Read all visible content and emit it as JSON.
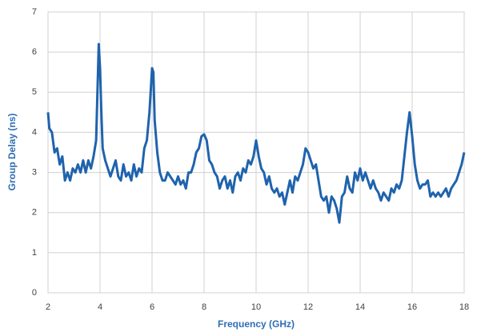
{
  "chart_data": {
    "type": "line",
    "x_label": "Frequency (GHz)",
    "y_label": "Group Delay (ns)",
    "xlim": [
      2,
      18
    ],
    "xticks": [
      2,
      4,
      6,
      8,
      10,
      12,
      14,
      16,
      18
    ],
    "ylim": [
      0,
      7
    ],
    "yticks": [
      0,
      1,
      2,
      3,
      4,
      5,
      6,
      7
    ],
    "grid": true,
    "series": [
      {
        "color": "#1f63ad",
        "x": [
          2.0,
          2.05,
          2.15,
          2.25,
          2.35,
          2.45,
          2.55,
          2.65,
          2.75,
          2.85,
          2.95,
          3.05,
          3.15,
          3.25,
          3.35,
          3.45,
          3.55,
          3.65,
          3.75,
          3.85,
          3.9,
          3.95,
          4.0,
          4.05,
          4.1,
          4.2,
          4.3,
          4.4,
          4.5,
          4.6,
          4.7,
          4.8,
          4.9,
          5.0,
          5.1,
          5.2,
          5.3,
          5.4,
          5.5,
          5.6,
          5.7,
          5.8,
          5.9,
          6.0,
          6.05,
          6.1,
          6.2,
          6.3,
          6.4,
          6.5,
          6.6,
          6.7,
          6.8,
          6.9,
          7.0,
          7.1,
          7.2,
          7.3,
          7.4,
          7.5,
          7.6,
          7.7,
          7.8,
          7.9,
          8.0,
          8.1,
          8.2,
          8.3,
          8.4,
          8.5,
          8.6,
          8.7,
          8.8,
          8.9,
          9.0,
          9.1,
          9.2,
          9.3,
          9.4,
          9.5,
          9.6,
          9.7,
          9.8,
          9.9,
          10.0,
          10.1,
          10.2,
          10.3,
          10.4,
          10.5,
          10.6,
          10.7,
          10.8,
          10.9,
          11.0,
          11.1,
          11.2,
          11.3,
          11.4,
          11.5,
          11.6,
          11.7,
          11.8,
          11.9,
          12.0,
          12.1,
          12.2,
          12.3,
          12.4,
          12.5,
          12.6,
          12.7,
          12.8,
          12.9,
          13.0,
          13.1,
          13.2,
          13.3,
          13.4,
          13.5,
          13.6,
          13.7,
          13.8,
          13.9,
          14.0,
          14.1,
          14.2,
          14.3,
          14.4,
          14.5,
          14.6,
          14.7,
          14.8,
          14.9,
          15.0,
          15.1,
          15.2,
          15.3,
          15.4,
          15.5,
          15.6,
          15.7,
          15.8,
          15.9,
          16.0,
          16.1,
          16.2,
          16.3,
          16.4,
          16.5,
          16.6,
          16.7,
          16.8,
          16.9,
          17.0,
          17.1,
          17.2,
          17.3,
          17.4,
          17.5,
          17.6,
          17.7,
          17.8,
          17.9,
          18.0
        ],
        "values": [
          4.5,
          4.1,
          4.0,
          3.5,
          3.6,
          3.2,
          3.4,
          2.8,
          3.0,
          2.8,
          3.1,
          3.0,
          3.2,
          3.0,
          3.3,
          3.0,
          3.3,
          3.1,
          3.4,
          3.8,
          5.0,
          6.2,
          5.6,
          4.5,
          3.6,
          3.3,
          3.1,
          2.9,
          3.1,
          3.3,
          2.9,
          2.8,
          3.2,
          2.9,
          3.0,
          2.8,
          3.2,
          2.9,
          3.1,
          3.0,
          3.6,
          3.8,
          4.5,
          5.6,
          5.5,
          4.3,
          3.5,
          3.0,
          2.8,
          2.8,
          3.0,
          2.9,
          2.8,
          2.7,
          2.9,
          2.7,
          2.8,
          2.6,
          3.0,
          3.0,
          3.2,
          3.5,
          3.6,
          3.9,
          3.95,
          3.8,
          3.3,
          3.2,
          3.0,
          2.9,
          2.6,
          2.8,
          2.9,
          2.6,
          2.8,
          2.5,
          2.9,
          3.0,
          2.8,
          3.1,
          3.0,
          3.3,
          3.2,
          3.4,
          3.8,
          3.4,
          3.1,
          3.0,
          2.7,
          2.9,
          2.6,
          2.5,
          2.6,
          2.4,
          2.5,
          2.2,
          2.5,
          2.8,
          2.5,
          2.9,
          2.8,
          3.0,
          3.2,
          3.6,
          3.5,
          3.3,
          3.1,
          3.2,
          2.8,
          2.4,
          2.3,
          2.4,
          2.0,
          2.4,
          2.3,
          2.1,
          1.75,
          2.4,
          2.5,
          2.9,
          2.6,
          2.5,
          3.0,
          2.8,
          3.1,
          2.8,
          3.0,
          2.8,
          2.6,
          2.8,
          2.6,
          2.5,
          2.3,
          2.5,
          2.4,
          2.3,
          2.6,
          2.5,
          2.7,
          2.6,
          2.8,
          3.4,
          4.0,
          4.5,
          3.9,
          3.2,
          2.8,
          2.6,
          2.7,
          2.7,
          2.8,
          2.4,
          2.5,
          2.4,
          2.5,
          2.4,
          2.5,
          2.6,
          2.4,
          2.6,
          2.7,
          2.8,
          3.0,
          3.2,
          3.5
        ]
      }
    ]
  }
}
